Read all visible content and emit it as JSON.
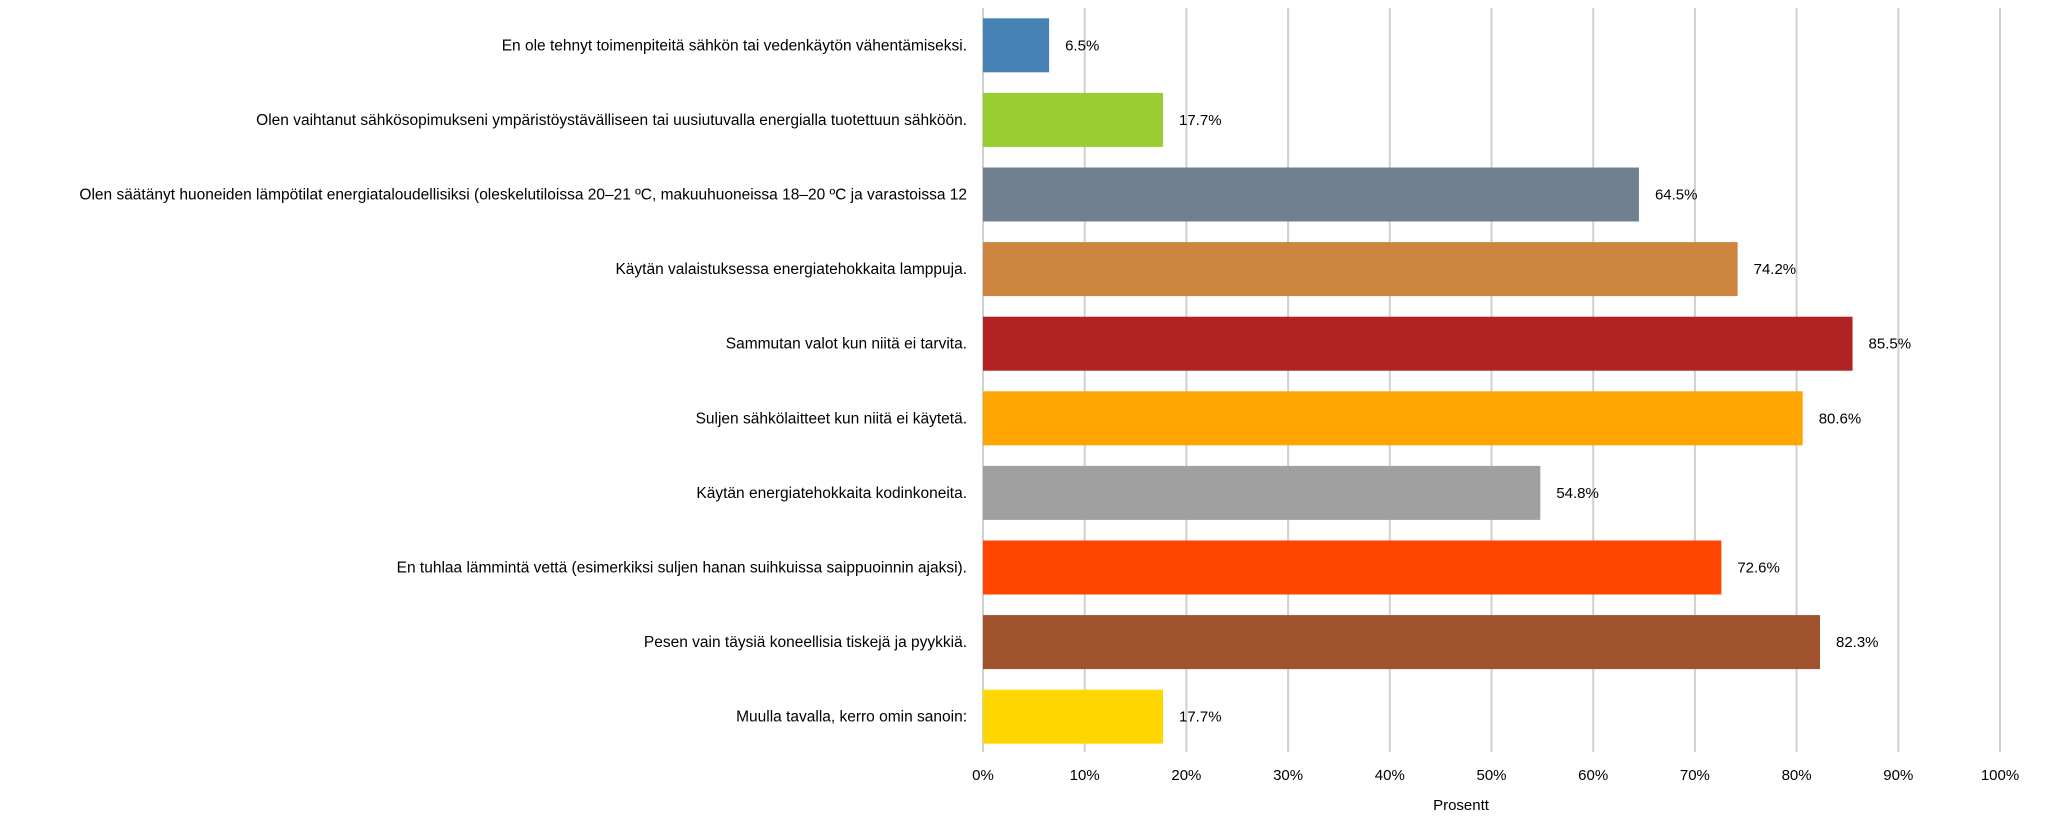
{
  "chart_data": {
    "type": "bar",
    "orientation": "horizontal",
    "categories": [
      "En ole tehnyt toimenpiteitä sähkön tai vedenkäytön vähentämiseksi.",
      "Olen vaihtanut sähkösopimukseni ympäristöystävälliseen tai uusiutuvalla energialla tuotettuun sähköön.",
      "Olen säätänyt huoneiden lämpötilat energiataloudellisiksi (oleskelutiloissa 20–21 ºC, makuuhuoneissa 18–20 ºC ja varastoissa 12",
      "Käytän valaistuksessa energiatehokkaita lamppuja.",
      "Sammutan valot kun niitä ei tarvita.",
      "Suljen sähkölaitteet kun niitä ei käytetä.",
      "Käytän energiatehokkaita kodinkoneita.",
      "En tuhlaa lämmintä vettä (esimerkiksi suljen hanan suihkuissa saippuoinnin ajaksi).",
      "Pesen vain täysiä koneellisia tiskejä ja pyykkiä.",
      "Muulla tavalla, kerro omin sanoin:"
    ],
    "values": [
      6.5,
      17.7,
      64.5,
      74.2,
      85.5,
      80.6,
      54.8,
      72.6,
      82.3,
      17.7
    ],
    "data_labels": [
      "6.5%",
      "17.7%",
      "64.5%",
      "74.2%",
      "85.5%",
      "80.6%",
      "54.8%",
      "72.6%",
      "82.3%",
      "17.7%"
    ],
    "colors": [
      "#4682b4",
      "#9acd32",
      "#708090",
      "#cd853f",
      "#b22222",
      "#ffa500",
      "#a0a0a0",
      "#ff4500",
      "#a0522d",
      "#ffd700"
    ],
    "xlabel": "Prosentt",
    "ylabel": "",
    "xlim": [
      0,
      100
    ],
    "xticks": [
      "0%",
      "10%",
      "20%",
      "30%",
      "40%",
      "50%",
      "60%",
      "70%",
      "80%",
      "90%",
      "100%"
    ],
    "grid": true,
    "legend": "none"
  }
}
